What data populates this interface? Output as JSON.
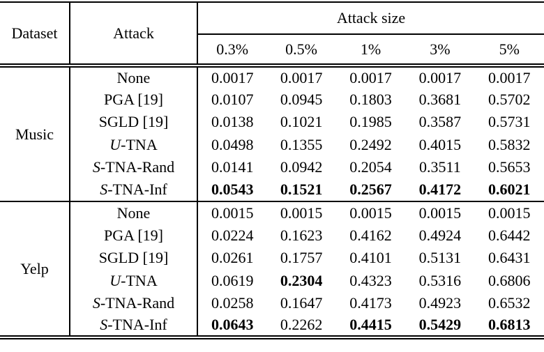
{
  "table": {
    "headers": {
      "dataset": "Dataset",
      "attack": "Attack",
      "attack_size": "Attack size",
      "sizes": [
        "0.3%",
        "0.5%",
        "1%",
        "3%",
        "5%"
      ]
    },
    "sections": [
      {
        "dataset": "Music",
        "rows": [
          {
            "script": "",
            "attack": "None",
            "values": [
              "0.0017",
              "0.0017",
              "0.0017",
              "0.0017",
              "0.0017"
            ],
            "bold": [
              false,
              false,
              false,
              false,
              false
            ]
          },
          {
            "script": "",
            "attack": "PGA [19]",
            "values": [
              "0.0107",
              "0.0945",
              "0.1803",
              "0.3681",
              "0.5702"
            ],
            "bold": [
              false,
              false,
              false,
              false,
              false
            ]
          },
          {
            "script": "",
            "attack": "SGLD [19]",
            "values": [
              "0.0138",
              "0.1021",
              "0.1985",
              "0.3587",
              "0.5731"
            ],
            "bold": [
              false,
              false,
              false,
              false,
              false
            ]
          },
          {
            "script": "U",
            "attack": "-TNA",
            "values": [
              "0.0498",
              "0.1355",
              "0.2492",
              "0.4015",
              "0.5832"
            ],
            "bold": [
              false,
              false,
              false,
              false,
              false
            ]
          },
          {
            "script": "S",
            "attack": "-TNA-Rand",
            "values": [
              "0.0141",
              "0.0942",
              "0.2054",
              "0.3511",
              "0.5653"
            ],
            "bold": [
              false,
              false,
              false,
              false,
              false
            ]
          },
          {
            "script": "S",
            "attack": "-TNA-Inf",
            "values": [
              "0.0543",
              "0.1521",
              "0.2567",
              "0.4172",
              "0.6021"
            ],
            "bold": [
              true,
              true,
              true,
              true,
              true
            ]
          }
        ]
      },
      {
        "dataset": "Yelp",
        "rows": [
          {
            "script": "",
            "attack": "None",
            "values": [
              "0.0015",
              "0.0015",
              "0.0015",
              "0.0015",
              "0.0015"
            ],
            "bold": [
              false,
              false,
              false,
              false,
              false
            ]
          },
          {
            "script": "",
            "attack": "PGA [19]",
            "values": [
              "0.0224",
              "0.1623",
              "0.4162",
              "0.4924",
              "0.6442"
            ],
            "bold": [
              false,
              false,
              false,
              false,
              false
            ]
          },
          {
            "script": "",
            "attack": "SGLD [19]",
            "values": [
              "0.0261",
              "0.1757",
              "0.4101",
              "0.5131",
              "0.6431"
            ],
            "bold": [
              false,
              false,
              false,
              false,
              false
            ]
          },
          {
            "script": "U",
            "attack": "-TNA",
            "values": [
              "0.0619",
              "0.2304",
              "0.4323",
              "0.5316",
              "0.6806"
            ],
            "bold": [
              false,
              true,
              false,
              false,
              false
            ]
          },
          {
            "script": "S",
            "attack": "-TNA-Rand",
            "values": [
              "0.0258",
              "0.1647",
              "0.4173",
              "0.4923",
              "0.6532"
            ],
            "bold": [
              false,
              false,
              false,
              false,
              false
            ]
          },
          {
            "script": "S",
            "attack": "-TNA-Inf",
            "values": [
              "0.0643",
              "0.2262",
              "0.4415",
              "0.5429",
              "0.6813"
            ],
            "bold": [
              true,
              false,
              true,
              true,
              true
            ]
          }
        ]
      }
    ],
    "colors": {
      "text": "#000000",
      "background": "#ffffff",
      "rule": "#000000"
    }
  }
}
